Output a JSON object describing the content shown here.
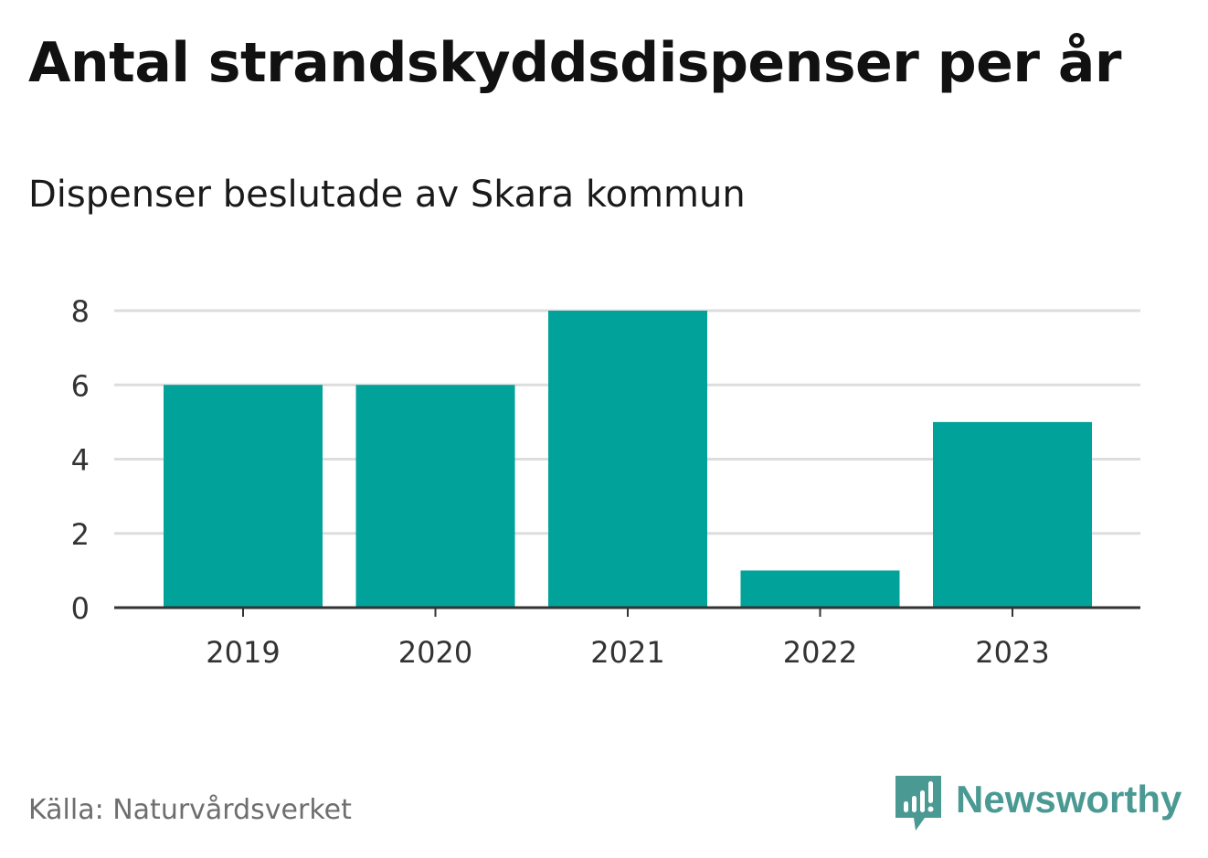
{
  "title": "Antal strandskyddsdispenser per år",
  "subtitle": "Dispenser beslutade av Skara kommun",
  "source": "Källa: Naturvårdsverket",
  "brand": {
    "name": "Newsworthy",
    "icon": "newsworthy-logo-icon"
  },
  "colors": {
    "bar": "#00a29a",
    "grid": "#dddddd",
    "axis": "#333333",
    "tick_text": "#333333",
    "brand": "#4a9a93"
  },
  "chart_data": {
    "type": "bar",
    "title": "Antal strandskyddsdispenser per år",
    "subtitle": "Dispenser beslutade av Skara kommun",
    "categories": [
      "2019",
      "2020",
      "2021",
      "2022",
      "2023"
    ],
    "values": [
      6,
      6,
      8,
      1,
      5
    ],
    "xlabel": "",
    "ylabel": "",
    "ylim": [
      0,
      8
    ],
    "yticks": [
      0,
      2,
      4,
      6,
      8
    ],
    "grid": true,
    "legend": "none"
  }
}
